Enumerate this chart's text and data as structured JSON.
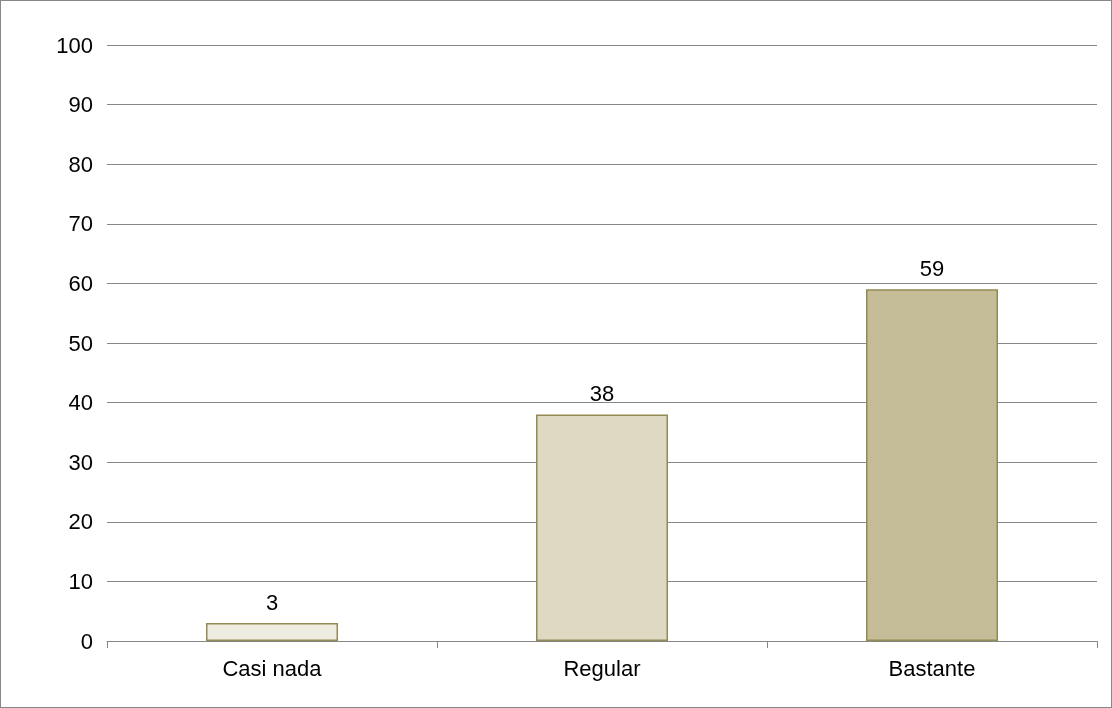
{
  "chart_data": {
    "type": "bar",
    "categories": [
      "Casi nada",
      "Regular",
      "Bastante"
    ],
    "values": [
      3,
      38,
      59
    ],
    "colors": [
      "#eeece1",
      "#ddd9c3",
      "#c4bd97"
    ],
    "ylim": [
      0,
      100
    ],
    "yticks": [
      0,
      10,
      20,
      30,
      40,
      50,
      60,
      70,
      80,
      90,
      100
    ],
    "grid": "y",
    "data_labels": true
  }
}
